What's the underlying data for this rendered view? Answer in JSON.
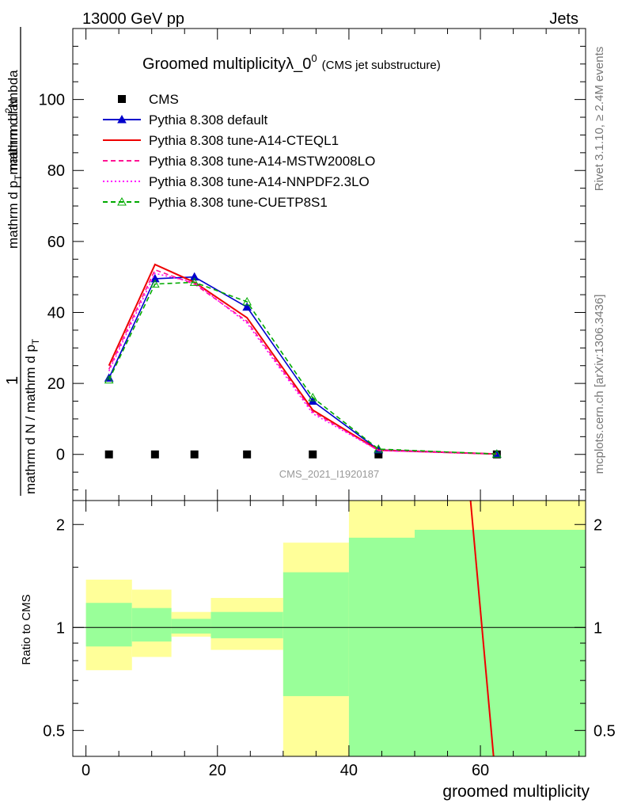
{
  "header": {
    "energy": "13000 GeV pp",
    "category": "Jets",
    "rivet": "Rivet 3.1.10, ≥ 2.4M events",
    "source": "mcplots.cern.ch [arXiv:1306.3436]",
    "analysis_id": "CMS_2021_I1920187"
  },
  "chart_data": [
    {
      "type": "line",
      "title": "Groomed multiplicityλ_0",
      "title_sup": "0",
      "subtitle": "(CMS jet substructure)",
      "ylabel_frac_num": "1",
      "ylabel_den": "mathrm d N / mathrm d p",
      "ylabel_den_sub": "T",
      "ylabel_num": "mathrm d",
      "ylabel_num_sup": "2",
      "ylabel_num_rest": "N",
      "ylabel_num_mid": "mathrm d p",
      "ylabel_num_sub": "T",
      "ylabel_num_end": "mathrm d lambda",
      "xlim": [
        -2,
        76
      ],
      "ylim": [
        -13,
        120
      ],
      "yticks": [
        0,
        20,
        40,
        60,
        80,
        100
      ],
      "series": [
        {
          "name": "CMS",
          "color": "#000000",
          "style": "marker-square",
          "x": [
            3.5,
            10.5,
            16.5,
            24.5,
            34.5,
            44.5,
            62.5
          ],
          "y": [
            0,
            0,
            0,
            0,
            0,
            0,
            0
          ]
        },
        {
          "name": "Pythia 8.308 default",
          "color": "#0000cc",
          "style": "solid-triangle",
          "x": [
            3.5,
            10.5,
            16.5,
            24.5,
            34.5,
            44.5,
            62.5
          ],
          "y": [
            21.5,
            49.5,
            50.0,
            41.5,
            15.0,
            1.3,
            0.1
          ]
        },
        {
          "name": "Pythia 8.308 tune-A14-CTEQL1",
          "color": "#ee0000",
          "style": "solid",
          "x": [
            3.5,
            10.5,
            16.5,
            24.5,
            34.5,
            44.5,
            62.5
          ],
          "y": [
            25.0,
            53.5,
            48.5,
            38.5,
            12.5,
            1.2,
            0.1
          ]
        },
        {
          "name": "Pythia 8.308 tune-A14-MSTW2008LO",
          "color": "#ff1493",
          "style": "dashed",
          "x": [
            3.5,
            10.5,
            16.5,
            24.5,
            34.5,
            44.5,
            62.5
          ],
          "y": [
            24.0,
            52.0,
            48.0,
            37.5,
            12.0,
            1.1,
            0.1
          ]
        },
        {
          "name": "Pythia 8.308 tune-A14-NNPDF2.3LO",
          "color": "#ff00ff",
          "style": "dotted",
          "x": [
            3.5,
            10.5,
            16.5,
            24.5,
            34.5,
            44.5,
            62.5
          ],
          "y": [
            23.5,
            51.0,
            48.5,
            37.0,
            11.5,
            1.1,
            0.1
          ]
        },
        {
          "name": "Pythia 8.308 tune-CUETP8S1",
          "color": "#00aa00",
          "style": "dashed-open-triangle",
          "x": [
            3.5,
            10.5,
            16.5,
            24.5,
            34.5,
            44.5,
            62.5
          ],
          "y": [
            21.0,
            48.0,
            48.5,
            43.0,
            16.0,
            1.5,
            0.1
          ]
        }
      ]
    },
    {
      "type": "area",
      "ylabel": "Ratio to CMS",
      "xlabel": "groomed multiplicity",
      "xlim": [
        -2,
        76
      ],
      "yscale": "log",
      "ylim": [
        0.42,
        2.35
      ],
      "yticks": [
        0.5,
        1,
        2
      ],
      "xticks": [
        0,
        20,
        40,
        60
      ],
      "yellow_band_color": "#ffff99",
      "green_band_color": "#99ff99",
      "bins": [
        {
          "lo": 0,
          "hi": 7,
          "yellow": [
            0.75,
            1.38
          ],
          "green": [
            0.88,
            1.18
          ]
        },
        {
          "lo": 7,
          "hi": 13,
          "yellow": [
            0.82,
            1.29
          ],
          "green": [
            0.91,
            1.14
          ]
        },
        {
          "lo": 13,
          "hi": 19,
          "yellow": [
            0.94,
            1.11
          ],
          "green": [
            0.96,
            1.06
          ]
        },
        {
          "lo": 19,
          "hi": 30,
          "yellow": [
            0.86,
            1.22
          ],
          "green": [
            0.93,
            1.11
          ]
        },
        {
          "lo": 30,
          "hi": 40,
          "yellow": [
            0.3,
            1.77
          ],
          "green": [
            0.63,
            1.45
          ]
        },
        {
          "lo": 40,
          "hi": 50,
          "yellow": [
            0.3,
            3.0
          ],
          "green": [
            0.3,
            1.83
          ]
        },
        {
          "lo": 50,
          "hi": 76,
          "yellow": [
            0.3,
            3.0
          ],
          "green": [
            0.3,
            1.93
          ]
        }
      ],
      "reference": 1,
      "ratio_line": {
        "x": [
          58.5,
          62.0
        ],
        "y": [
          2.5,
          0.4
        ]
      }
    }
  ]
}
